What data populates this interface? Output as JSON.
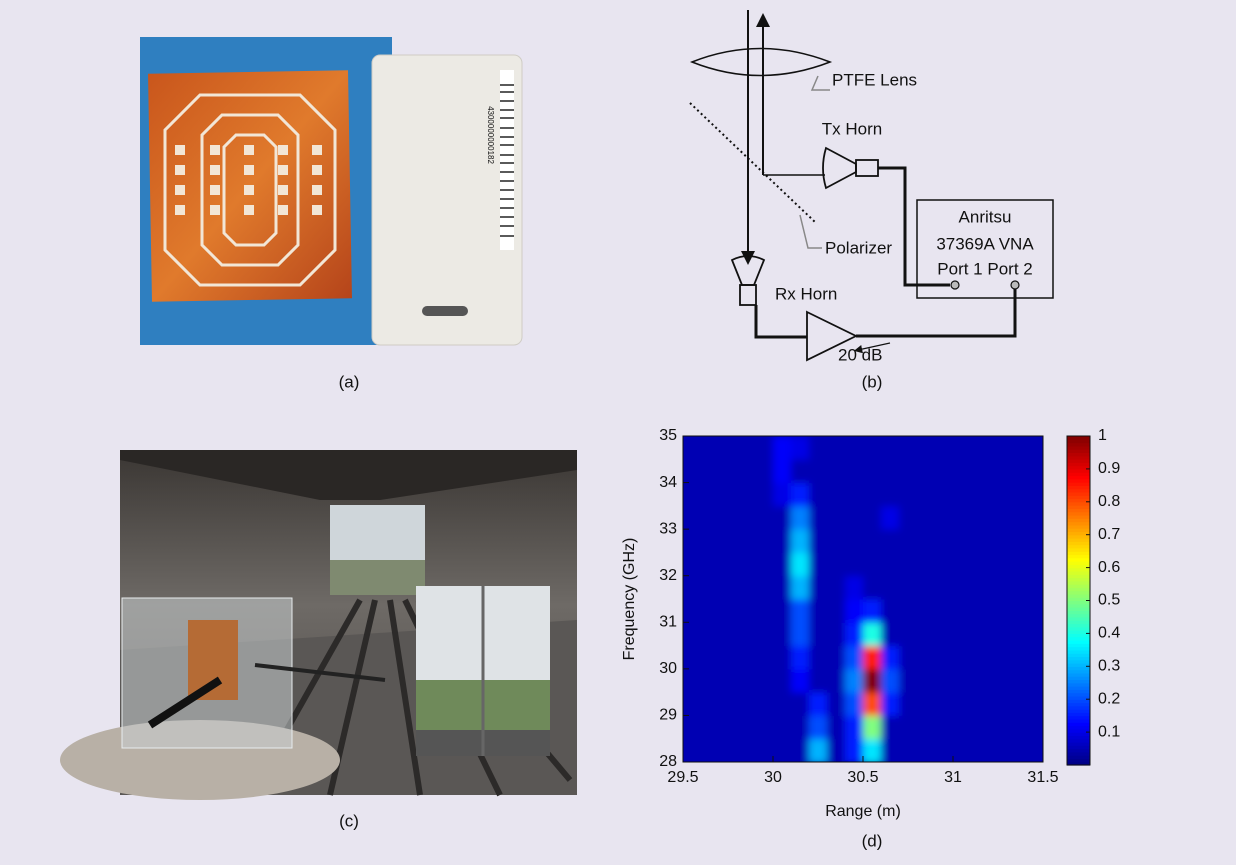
{
  "captions": [
    "(a)",
    "(b)",
    "(c)",
    "(d)"
  ],
  "photo_a": {
    "barcode": "4300000000182"
  },
  "diagram": {
    "lens": "PTFE Lens",
    "tx_horn": "Tx Horn",
    "vna": [
      "Anritsu",
      "37369A VNA",
      "Port 1 Port 2"
    ],
    "polarizer": "Polarizer",
    "rx_horn": "Rx Horn",
    "amplifier": "20 dB"
  },
  "chart_data": {
    "type": "heatmap",
    "xlabel": "Range (m)",
    "ylabel": "Frequency (GHz)",
    "x": [
      29.55,
      29.65,
      29.75,
      29.85,
      29.95,
      30.05,
      30.15,
      30.25,
      30.35,
      30.45,
      30.55,
      30.65,
      30.75,
      30.85,
      30.95,
      31.05,
      31.15,
      31.25,
      31.35,
      31.45
    ],
    "y": [
      28.25,
      28.75,
      29.25,
      29.75,
      30.25,
      30.75,
      31.25,
      31.75,
      32.25,
      32.75,
      33.25,
      33.75,
      34.25,
      34.75
    ],
    "z": [
      [
        0.05,
        0.05,
        0.05,
        0.05,
        0.05,
        0.05,
        0.05,
        0.3,
        0.05,
        0.15,
        0.35,
        0.05,
        0.05,
        0.05,
        0.05,
        0.05,
        0.05,
        0.05,
        0.05,
        0.05
      ],
      [
        0.05,
        0.05,
        0.05,
        0.05,
        0.05,
        0.05,
        0.05,
        0.2,
        0.05,
        0.15,
        0.5,
        0.05,
        0.05,
        0.05,
        0.05,
        0.05,
        0.05,
        0.05,
        0.05,
        0.05
      ],
      [
        0.05,
        0.05,
        0.05,
        0.05,
        0.05,
        0.05,
        0.05,
        0.15,
        0.05,
        0.2,
        0.8,
        0.15,
        0.05,
        0.05,
        0.05,
        0.05,
        0.05,
        0.05,
        0.05,
        0.05
      ],
      [
        0.05,
        0.05,
        0.05,
        0.05,
        0.05,
        0.05,
        0.12,
        0.05,
        0.05,
        0.25,
        1,
        0.2,
        0.05,
        0.05,
        0.05,
        0.05,
        0.05,
        0.05,
        0.05,
        0.05
      ],
      [
        0.05,
        0.05,
        0.05,
        0.05,
        0.05,
        0.05,
        0.15,
        0.05,
        0.05,
        0.2,
        0.85,
        0.15,
        0.05,
        0.05,
        0.05,
        0.05,
        0.05,
        0.05,
        0.05,
        0.05
      ],
      [
        0.05,
        0.05,
        0.05,
        0.05,
        0.05,
        0.05,
        0.2,
        0.05,
        0.05,
        0.15,
        0.4,
        0.05,
        0.05,
        0.05,
        0.05,
        0.05,
        0.05,
        0.05,
        0.05,
        0.05
      ],
      [
        0.05,
        0.05,
        0.05,
        0.05,
        0.05,
        0.05,
        0.2,
        0.05,
        0.05,
        0.12,
        0.15,
        0.05,
        0.05,
        0.05,
        0.05,
        0.05,
        0.05,
        0.05,
        0.05,
        0.05
      ],
      [
        0.05,
        0.05,
        0.05,
        0.05,
        0.05,
        0.05,
        0.3,
        0.05,
        0.05,
        0.1,
        0.05,
        0.05,
        0.05,
        0.05,
        0.05,
        0.05,
        0.05,
        0.05,
        0.05,
        0.05
      ],
      [
        0.05,
        0.05,
        0.05,
        0.05,
        0.05,
        0.05,
        0.35,
        0.05,
        0.05,
        0.05,
        0.05,
        0.05,
        0.05,
        0.05,
        0.05,
        0.05,
        0.05,
        0.05,
        0.05,
        0.05
      ],
      [
        0.05,
        0.05,
        0.05,
        0.05,
        0.05,
        0.05,
        0.3,
        0.05,
        0.05,
        0.05,
        0.05,
        0.05,
        0.05,
        0.05,
        0.05,
        0.05,
        0.05,
        0.05,
        0.05,
        0.05
      ],
      [
        0.05,
        0.05,
        0.05,
        0.05,
        0.05,
        0.05,
        0.25,
        0.05,
        0.05,
        0.05,
        0.05,
        0.1,
        0.05,
        0.05,
        0.05,
        0.05,
        0.05,
        0.05,
        0.05,
        0.05
      ],
      [
        0.05,
        0.05,
        0.05,
        0.05,
        0.05,
        0.1,
        0.15,
        0.05,
        0.05,
        0.05,
        0.05,
        0.05,
        0.05,
        0.05,
        0.05,
        0.05,
        0.05,
        0.05,
        0.05,
        0.05
      ],
      [
        0.05,
        0.05,
        0.05,
        0.05,
        0.05,
        0.12,
        0.05,
        0.05,
        0.05,
        0.05,
        0.05,
        0.05,
        0.05,
        0.05,
        0.05,
        0.05,
        0.05,
        0.05,
        0.05,
        0.05
      ],
      [
        0.05,
        0.05,
        0.05,
        0.05,
        0.05,
        0.12,
        0.1,
        0.05,
        0.05,
        0.05,
        0.05,
        0.05,
        0.05,
        0.05,
        0.05,
        0.05,
        0.05,
        0.05,
        0.05,
        0.05
      ]
    ],
    "xlim": [
      29.5,
      31.5
    ],
    "ylim": [
      28,
      35
    ],
    "xticks": [
      29.5,
      30,
      30.5,
      31,
      31.5
    ],
    "yticks": [
      28,
      29,
      30,
      31,
      32,
      33,
      34,
      35
    ],
    "colormap": "jet",
    "clim": [
      0,
      1
    ],
    "colorbar_ticks": [
      0.1,
      0.2,
      0.3,
      0.4,
      0.5,
      0.6,
      0.7,
      0.8,
      0.9,
      1
    ]
  }
}
